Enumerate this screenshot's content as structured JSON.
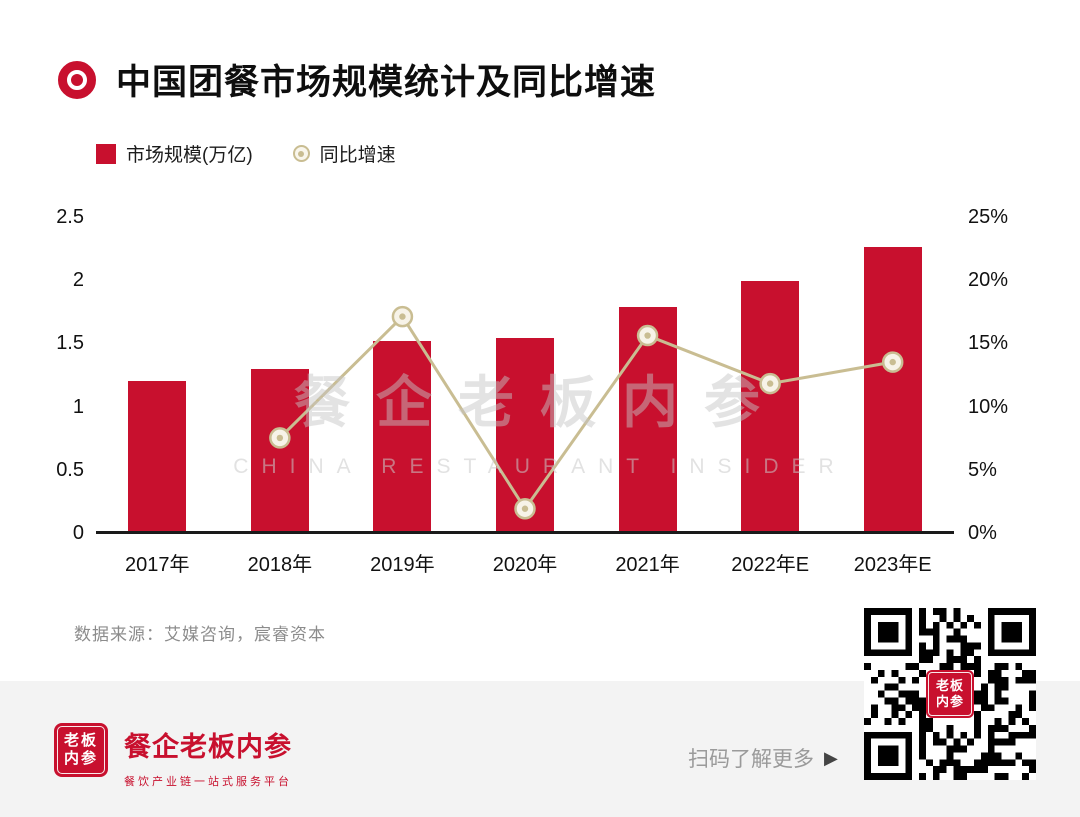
{
  "header": {
    "title": "中国团餐市场规模统计及同比增速"
  },
  "chart_data": {
    "type": "bar",
    "title": "中国团餐市场规模统计及同比增速",
    "categories": [
      "2017年",
      "2018年",
      "2019年",
      "2020年",
      "2021年",
      "2022年E",
      "2023年E"
    ],
    "series": [
      {
        "name": "市场规模(万亿)",
        "type": "bar",
        "axis": "left",
        "color": "#c8102e",
        "values": [
          1.19,
          1.28,
          1.5,
          1.53,
          1.77,
          1.98,
          2.25
        ]
      },
      {
        "name": "同比增速",
        "type": "line",
        "axis": "right",
        "color": "#c9bd92",
        "values": [
          null,
          7.6,
          17.2,
          2.0,
          15.7,
          11.9,
          13.6
        ]
      }
    ],
    "left_axis": {
      "min": 0,
      "max": 2.5,
      "ticks": [
        "0",
        "0.5",
        "1",
        "1.5",
        "2",
        "2.5"
      ]
    },
    "right_axis": {
      "min": 0,
      "max": 25,
      "ticks": [
        "0%",
        "5%",
        "10%",
        "15%",
        "20%",
        "25%"
      ]
    },
    "grid": false,
    "legend_position": "top-left"
  },
  "watermark": {
    "cn": "餐企老板内参",
    "en": "CHINA RESTAURANT INSIDER"
  },
  "source_note": "数据来源：艾媒咨询，宸睿资本",
  "footer": {
    "seal_top": "老板",
    "seal_bottom": "内参",
    "brand": "餐企老板内参",
    "tagline": "餐饮产业链一站式服务平台",
    "cta": "扫码了解更多",
    "cta_arrow": "▶"
  },
  "colors": {
    "bar": "#c8102e",
    "line": "#c9bd92",
    "footer_bg": "#f3f3f3"
  }
}
